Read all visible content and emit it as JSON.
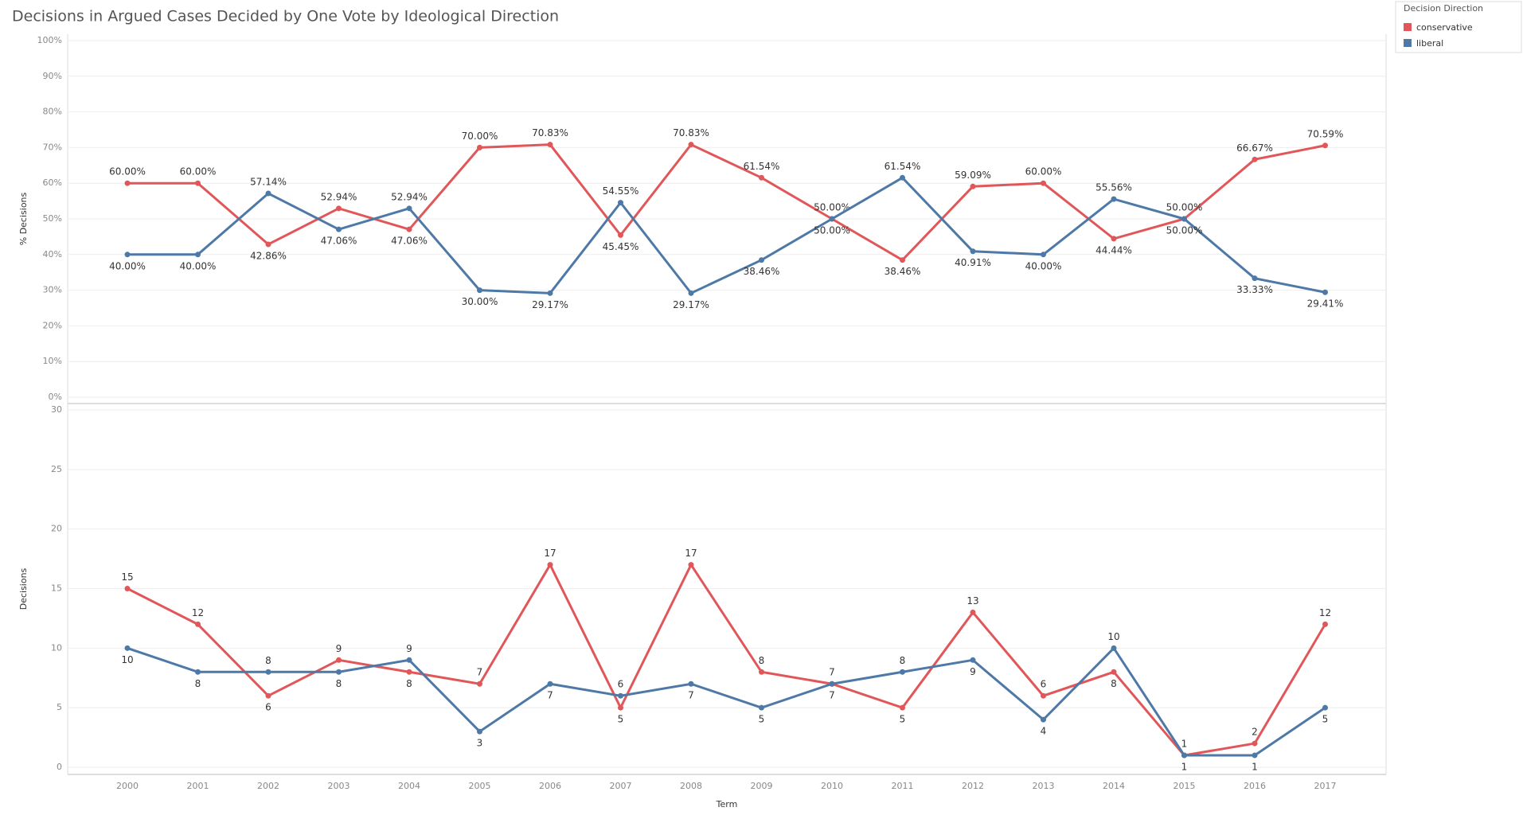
{
  "title": "Decisions in Argued Cases Decided by One Vote by Ideological Direction",
  "legend_title": "Decision Direction",
  "chart_data": [
    {
      "type": "line",
      "y_label": "% Decisions",
      "categories": [
        "2000",
        "2001",
        "2002",
        "2003",
        "2004",
        "2005",
        "2006",
        "2007",
        "2008",
        "2009",
        "2010",
        "2011",
        "2012",
        "2013",
        "2014",
        "2015",
        "2016",
        "2017"
      ],
      "ylim": [
        0,
        100
      ],
      "yticks": [
        {
          "value": 0,
          "label": "0%"
        },
        {
          "value": 10,
          "label": "10%"
        },
        {
          "value": 20,
          "label": "20%"
        },
        {
          "value": 30,
          "label": "30%"
        },
        {
          "value": 40,
          "label": "40%"
        },
        {
          "value": 50,
          "label": "50%"
        },
        {
          "value": 60,
          "label": "60%"
        },
        {
          "value": 70,
          "label": "70%"
        },
        {
          "value": 80,
          "label": "80%"
        },
        {
          "value": 90,
          "label": "90%"
        },
        {
          "value": 100,
          "label": "100%"
        }
      ],
      "grid": true,
      "series": [
        {
          "name": "conservative",
          "color": "#e15759",
          "values": [
            60,
            60,
            42.86,
            52.94,
            47.06,
            70,
            70.83,
            45.45,
            70.83,
            61.54,
            50,
            38.46,
            59.09,
            60,
            44.44,
            50,
            66.67,
            70.59
          ],
          "value_labels": [
            "60.00%",
            "60.00%",
            "42.86%",
            "52.94%",
            "47.06%",
            "70.00%",
            "70.83%",
            "45.45%",
            "70.83%",
            "61.54%",
            "50.00%",
            "38.46%",
            "59.09%",
            "60.00%",
            "44.44%",
            "50.00%",
            "66.67%",
            "70.59%"
          ]
        },
        {
          "name": "liberal",
          "color": "#4e79a7",
          "values": [
            40,
            40,
            57.14,
            47.06,
            52.94,
            30,
            29.17,
            54.55,
            29.17,
            38.46,
            50,
            61.54,
            40.91,
            40,
            55.56,
            50,
            33.33,
            29.41
          ],
          "value_labels": [
            "40.00%",
            "40.00%",
            "57.14%",
            "47.06%",
            "52.94%",
            "30.00%",
            "29.17%",
            "54.55%",
            "29.17%",
            "38.46%",
            "50.00%",
            "61.54%",
            "40.91%",
            "40.00%",
            "55.56%",
            "50.00%",
            "33.33%",
            "29.41%"
          ]
        }
      ]
    },
    {
      "type": "line",
      "y_label": "Decisions",
      "x_label": "Term",
      "categories": [
        "2000",
        "2001",
        "2002",
        "2003",
        "2004",
        "2005",
        "2006",
        "2007",
        "2008",
        "2009",
        "2010",
        "2011",
        "2012",
        "2013",
        "2014",
        "2015",
        "2016",
        "2017"
      ],
      "ylim": [
        0,
        30
      ],
      "yticks": [
        0,
        5,
        10,
        15,
        20,
        25,
        30
      ],
      "grid": true,
      "series": [
        {
          "name": "conservative",
          "color": "#e15759",
          "values": [
            15,
            12,
            6,
            9,
            8,
            7,
            17,
            5,
            17,
            8,
            7,
            5,
            13,
            6,
            8,
            1,
            2,
            12
          ]
        },
        {
          "name": "liberal",
          "color": "#4e79a7",
          "values": [
            10,
            8,
            8,
            8,
            9,
            3,
            7,
            6,
            7,
            5,
            7,
            8,
            9,
            4,
            10,
            1,
            1,
            5
          ]
        }
      ]
    }
  ]
}
